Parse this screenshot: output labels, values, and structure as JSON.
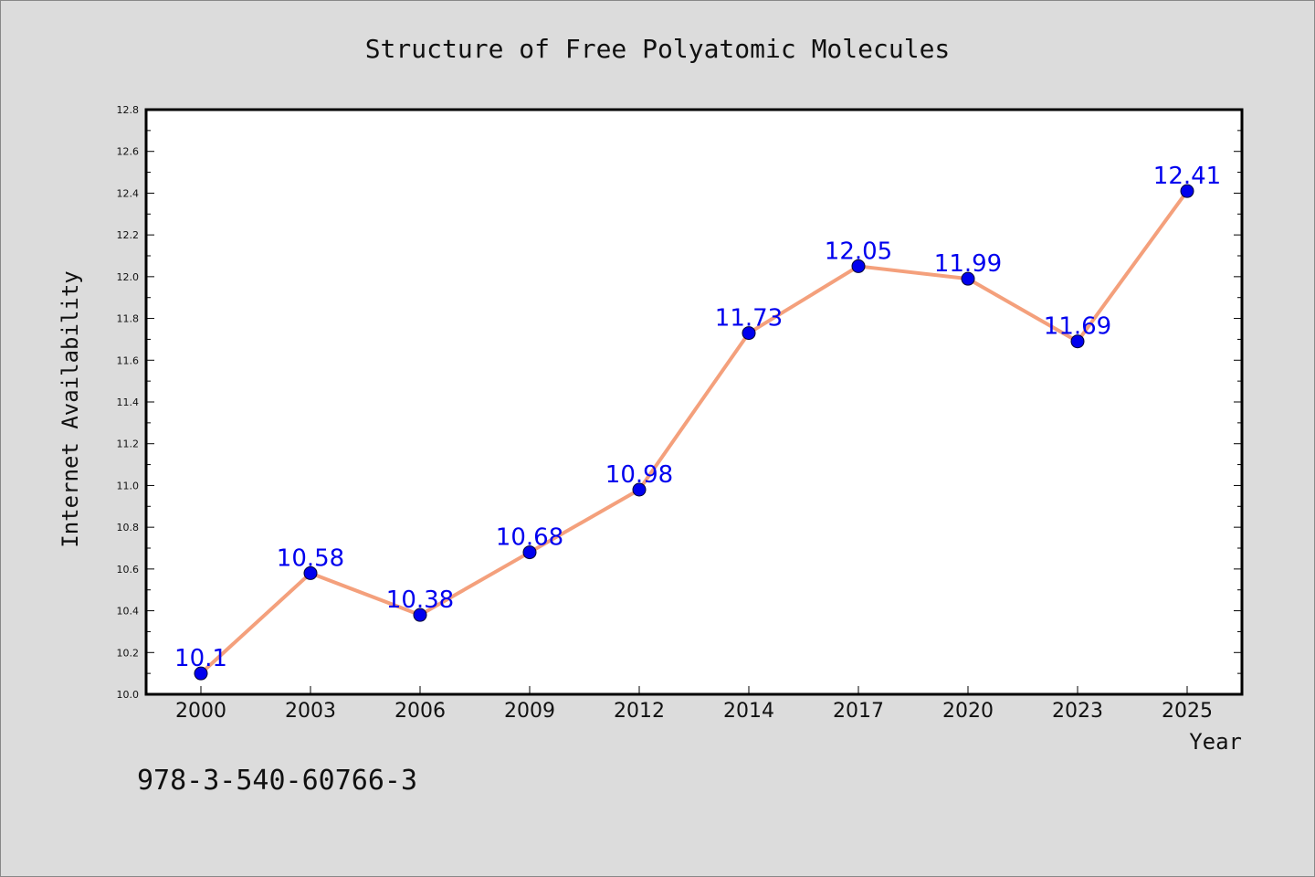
{
  "chart_data": {
    "type": "line",
    "title": "Structure of Free Polyatomic Molecules",
    "xlabel": "Year",
    "ylabel": "Internet Availability",
    "categories": [
      "2000",
      "2003",
      "2006",
      "2009",
      "2012",
      "2014",
      "2017",
      "2020",
      "2023",
      "2025"
    ],
    "series": [
      {
        "values": [
          10.1,
          10.58,
          10.38,
          10.68,
          10.98,
          11.73,
          12.05,
          11.99,
          11.69,
          12.41
        ],
        "data_labels": [
          "10.1",
          "10.58",
          "10.38",
          "10.68",
          "10.98",
          "11.73",
          "12.05",
          "11.99",
          "11.69",
          "12.41"
        ]
      }
    ],
    "ylim": [
      10.0,
      12.8
    ],
    "yticks": [
      "10.0",
      "10.2",
      "10.4",
      "10.6",
      "10.8",
      "11.0",
      "11.2",
      "11.4",
      "11.6",
      "11.8",
      "12.0",
      "12.2",
      "12.4",
      "12.6",
      "12.8"
    ],
    "grid": false,
    "colors": {
      "line": "#f4a07c",
      "marker": "#0000ee",
      "label": "#0000ee",
      "background": "#dcdcdc",
      "plot_background": "#ffffff"
    }
  },
  "footer": {
    "isbn": "978-3-540-60766-3"
  }
}
